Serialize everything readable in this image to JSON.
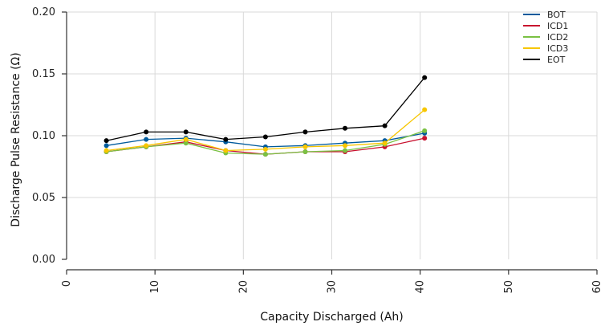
{
  "chart_data": {
    "type": "line",
    "title": "",
    "xlabel": "Capacity Discharged (Ah)",
    "ylabel": "Discharge Pulse Resistance (Ω)",
    "xlim": [
      0,
      60
    ],
    "ylim": [
      0,
      0.2
    ],
    "xticks": [
      0,
      10,
      20,
      30,
      40,
      50,
      60
    ],
    "xtick_labels": [
      "0",
      "10",
      "20",
      "30",
      "40",
      "50",
      "60"
    ],
    "yticks": [
      0,
      0.05,
      0.1,
      0.15,
      0.2
    ],
    "ytick_labels": [
      "0.00",
      "0.05",
      "0.10",
      "0.15",
      "0.20"
    ],
    "grid": true,
    "legend_position": "top-right",
    "series": [
      {
        "name": "BOT",
        "color": "#005a9c",
        "x": [
          4.5,
          9.0,
          13.5,
          18.0,
          22.5,
          27.0,
          31.5,
          36.0,
          40.5
        ],
        "y": [
          0.092,
          0.097,
          0.098,
          0.095,
          0.091,
          0.092,
          0.094,
          0.096,
          0.102
        ]
      },
      {
        "name": "ICD1",
        "color": "#c8102e",
        "x": [
          4.5,
          9.0,
          13.5,
          18.0,
          22.5,
          27.0,
          31.5,
          36.0,
          40.5
        ],
        "y": [
          0.087,
          0.091,
          0.095,
          0.088,
          0.085,
          0.087,
          0.087,
          0.091,
          0.098
        ]
      },
      {
        "name": "ICD2",
        "color": "#7ac143",
        "x": [
          4.5,
          9.0,
          13.5,
          18.0,
          22.5,
          27.0,
          31.5,
          36.0,
          40.5
        ],
        "y": [
          0.087,
          0.091,
          0.094,
          0.086,
          0.085,
          0.087,
          0.088,
          0.093,
          0.104
        ]
      },
      {
        "name": "ICD3",
        "color": "#f7c600",
        "x": [
          4.5,
          9.0,
          13.5,
          18.0,
          22.5,
          27.0,
          31.5,
          36.0,
          40.5
        ],
        "y": [
          0.088,
          0.092,
          0.097,
          0.088,
          0.089,
          0.091,
          0.092,
          0.094,
          0.121
        ]
      },
      {
        "name": "EOT",
        "color": "#000000",
        "x": [
          4.5,
          9.0,
          13.5,
          18.0,
          22.5,
          27.0,
          31.5,
          36.0,
          40.5
        ],
        "y": [
          0.096,
          0.103,
          0.103,
          0.097,
          0.099,
          0.103,
          0.106,
          0.108,
          0.147
        ]
      }
    ]
  }
}
